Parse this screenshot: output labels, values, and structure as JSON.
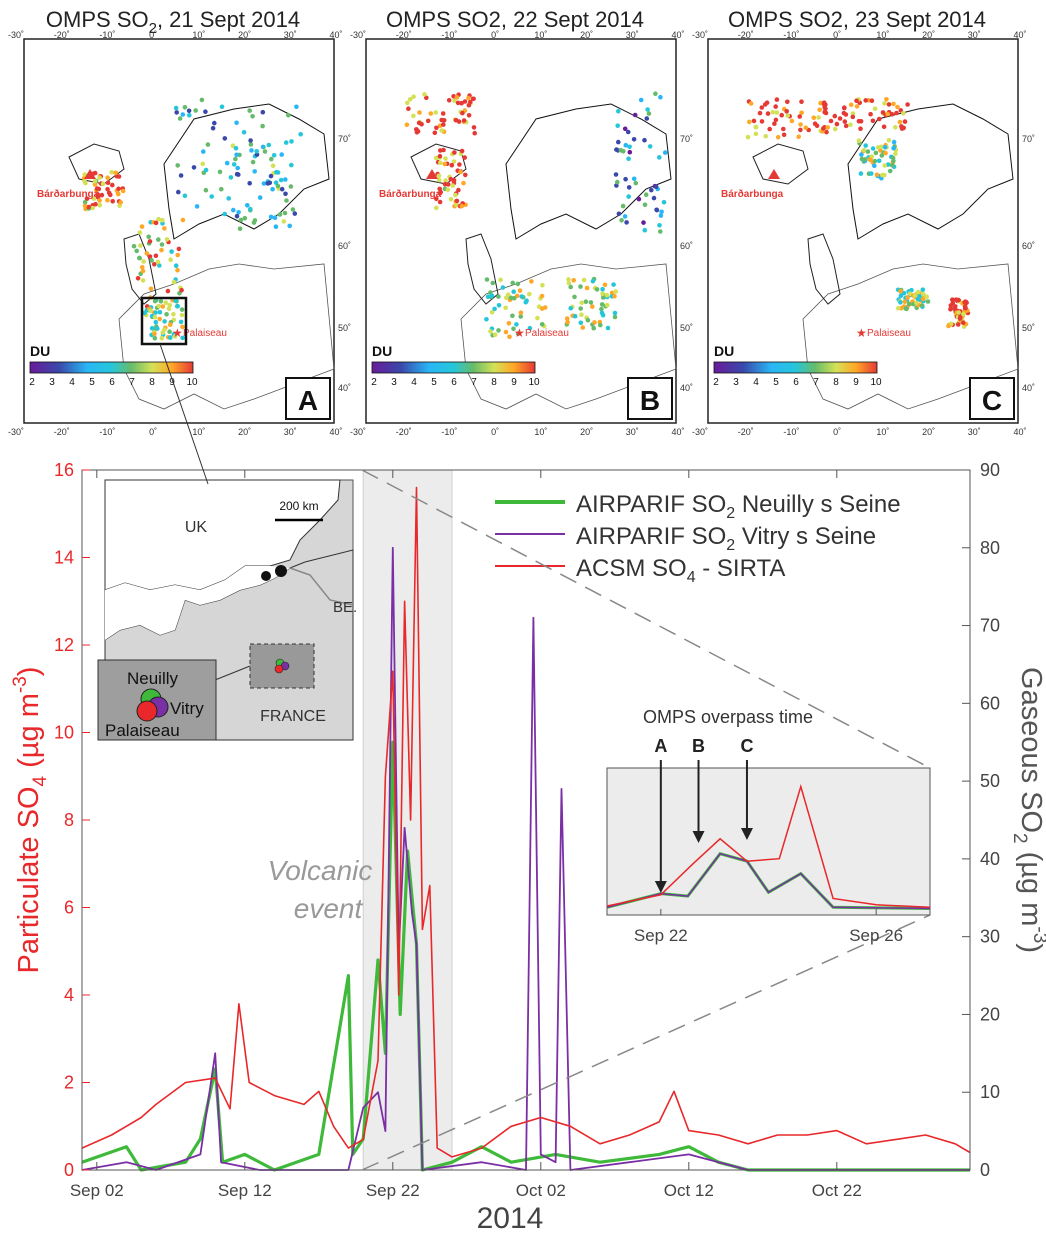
{
  "maps": [
    {
      "title_main": "OMPS SO",
      "title_sub": "2",
      "title_rest": ", 21 Sept 2014",
      "panel_letter": "A",
      "volcano_label": "Bárðarbunga",
      "site_label": "Palaiseau",
      "colorbar_unit": "DU",
      "colorbar_ticks": [
        "2",
        "3",
        "4",
        "5",
        "6",
        "7",
        "8",
        "9",
        "10"
      ],
      "lon_ticks": [
        "-30˚",
        "-20˚",
        "-10˚",
        "0˚",
        "10˚",
        "20˚",
        "30˚",
        "40˚"
      ],
      "lat_ticks": [
        "70˚",
        "60˚",
        "50˚",
        "40˚"
      ]
    },
    {
      "title_main": "OMPS SO2, 22 Sept 2014",
      "title_sub": "",
      "title_rest": "",
      "panel_letter": "B",
      "volcano_label": "Bárðarbunga",
      "site_label": "Palaiseau",
      "colorbar_unit": "DU",
      "colorbar_ticks": [
        "2",
        "3",
        "4",
        "5",
        "6",
        "7",
        "8",
        "9",
        "10"
      ],
      "lon_ticks": [
        "-30˚",
        "-20˚",
        "-10˚",
        "0˚",
        "10˚",
        "20˚",
        "30˚",
        "40˚"
      ],
      "lat_ticks": [
        "70˚",
        "60˚",
        "50˚",
        "40˚"
      ]
    },
    {
      "title_main": "OMPS SO2, 23 Sept 2014",
      "title_sub": "",
      "title_rest": "",
      "panel_letter": "C",
      "volcano_label": "Bárðarbunga",
      "site_label": "Palaiseau",
      "colorbar_unit": "DU",
      "colorbar_ticks": [
        "2",
        "3",
        "4",
        "5",
        "6",
        "7",
        "8",
        "9",
        "10"
      ],
      "lon_ticks": [
        "-30˚",
        "-20˚",
        "-10˚",
        "0˚",
        "10˚",
        "20˚",
        "30˚",
        "40˚"
      ],
      "lat_ticks": [
        "70˚",
        "60˚",
        "50˚",
        "40˚"
      ]
    }
  ],
  "colors": {
    "so4": "#e8282a",
    "neuilly": "#3fb93a",
    "vitry": "#7a2fa5",
    "shade": "#ececec",
    "axis": "#444444"
  },
  "chart_data": {
    "type": "line",
    "xlabel": "2014",
    "ylabel_left": "Particulate SO4 (µg m-3)",
    "ylabel_right": "Gaseous SO2 (µg m-3)",
    "x_range": [
      "2014-09-01",
      "2014-10-31"
    ],
    "x_ticks": [
      {
        "date": "2014-09-02",
        "label": "Sep 02"
      },
      {
        "date": "2014-09-12",
        "label": "Sep 12"
      },
      {
        "date": "2014-09-22",
        "label": "Sep 22"
      },
      {
        "date": "2014-10-02",
        "label": "Oct 02"
      },
      {
        "date": "2014-10-12",
        "label": "Oct 12"
      },
      {
        "date": "2014-10-22",
        "label": "Oct 22"
      }
    ],
    "y_left": {
      "min": 0,
      "max": 16,
      "ticks": [
        0,
        2,
        4,
        6,
        8,
        10,
        12,
        14,
        16
      ]
    },
    "y_right": {
      "min": 0,
      "max": 90,
      "ticks": [
        0,
        10,
        20,
        30,
        40,
        50,
        60,
        70,
        80,
        90
      ]
    },
    "shaded_region": {
      "start": "2014-09-20",
      "end": "2014-09-26",
      "label_line1": "Volcanic",
      "label_line2": "event"
    },
    "legend": {
      "neuilly_main": "AIRPARIF SO",
      "neuilly_sub": "2",
      "neuilly_rest": " Neuilly s Seine",
      "vitry_main": "AIRPARIF SO",
      "vitry_sub": "2",
      "vitry_rest": " Vitry s Seine",
      "so4_main": "ACSM SO",
      "so4_sub": "4",
      "so4_rest": " - SIRTA"
    },
    "series": [
      {
        "key": "so4",
        "axis": "left",
        "points": [
          [
            "2014-09-01",
            0.5
          ],
          [
            "2014-09-03",
            0.8
          ],
          [
            "2014-09-05",
            1.2
          ],
          [
            "2014-09-06",
            1.5
          ],
          [
            "2014-09-08",
            2.0
          ],
          [
            "2014-09-10",
            2.1
          ],
          [
            "2014-09-11",
            1.4
          ],
          [
            "2014-09-11.6",
            3.8
          ],
          [
            "2014-09-12.3",
            2.0
          ],
          [
            "2014-09-14",
            1.7
          ],
          [
            "2014-09-16",
            1.5
          ],
          [
            "2014-09-17",
            1.8
          ],
          [
            "2014-09-18",
            1.0
          ],
          [
            "2014-09-19",
            0.5
          ],
          [
            "2014-09-20",
            0.7
          ],
          [
            "2014-09-21",
            2.5
          ],
          [
            "2014-09-21.5",
            9.0
          ],
          [
            "2014-09-22",
            11.4
          ],
          [
            "2014-09-22.4",
            4.0
          ],
          [
            "2014-09-22.8",
            13.0
          ],
          [
            "2014-09-23.2",
            8.0
          ],
          [
            "2014-09-23.6",
            15.6
          ],
          [
            "2014-09-24",
            5.5
          ],
          [
            "2014-09-24.5",
            6.5
          ],
          [
            "2014-09-25",
            0.5
          ],
          [
            "2014-09-26",
            0.3
          ],
          [
            "2014-09-28",
            0.5
          ],
          [
            "2014-09-30",
            1.0
          ],
          [
            "2014-10-02",
            1.2
          ],
          [
            "2014-10-04",
            1.0
          ],
          [
            "2014-10-06",
            0.6
          ],
          [
            "2014-10-08",
            0.8
          ],
          [
            "2014-10-10",
            1.1
          ],
          [
            "2014-10-11",
            1.8
          ],
          [
            "2014-10-12",
            0.9
          ],
          [
            "2014-10-14",
            0.8
          ],
          [
            "2014-10-16",
            0.6
          ],
          [
            "2014-10-18",
            0.8
          ],
          [
            "2014-10-20",
            0.8
          ],
          [
            "2014-10-22",
            0.9
          ],
          [
            "2014-10-24",
            0.6
          ],
          [
            "2014-10-26",
            0.7
          ],
          [
            "2014-10-28",
            0.8
          ],
          [
            "2014-10-30",
            0.6
          ],
          [
            "2014-10-31",
            0.4
          ]
        ]
      },
      {
        "key": "neuilly",
        "axis": "right",
        "points": [
          [
            "2014-09-01",
            1
          ],
          [
            "2014-09-04",
            3
          ],
          [
            "2014-09-05",
            0
          ],
          [
            "2014-09-08",
            1
          ],
          [
            "2014-09-09",
            4
          ],
          [
            "2014-09-10",
            13
          ],
          [
            "2014-09-10.5",
            1
          ],
          [
            "2014-09-12",
            2
          ],
          [
            "2014-09-14",
            0
          ],
          [
            "2014-09-17",
            2
          ],
          [
            "2014-09-19",
            25
          ],
          [
            "2014-09-19.3",
            2
          ],
          [
            "2014-09-20",
            4
          ],
          [
            "2014-09-21",
            27
          ],
          [
            "2014-09-21.5",
            15
          ],
          [
            "2014-09-22",
            55
          ],
          [
            "2014-09-22.5",
            20
          ],
          [
            "2014-09-23",
            41
          ],
          [
            "2014-09-23.6",
            29
          ],
          [
            "2014-09-24",
            0
          ],
          [
            "2014-09-26",
            1
          ],
          [
            "2014-09-28",
            3
          ],
          [
            "2014-09-30",
            1
          ],
          [
            "2014-10-03",
            2
          ],
          [
            "2014-10-06",
            1
          ],
          [
            "2014-10-10",
            2
          ],
          [
            "2014-10-12",
            3
          ],
          [
            "2014-10-14",
            1
          ],
          [
            "2014-10-16",
            0
          ],
          [
            "2014-10-31",
            0
          ]
        ]
      },
      {
        "key": "vitry",
        "axis": "right",
        "points": [
          [
            "2014-09-01",
            0
          ],
          [
            "2014-09-04",
            1
          ],
          [
            "2014-09-06",
            0
          ],
          [
            "2014-09-09",
            2
          ],
          [
            "2014-09-10",
            15
          ],
          [
            "2014-09-10.4",
            1
          ],
          [
            "2014-09-13",
            0
          ],
          [
            "2014-09-19",
            0
          ],
          [
            "2014-09-20",
            8
          ],
          [
            "2014-09-21",
            10
          ],
          [
            "2014-09-21.5",
            5
          ],
          [
            "2014-09-22",
            80
          ],
          [
            "2014-09-22.4",
            28
          ],
          [
            "2014-09-22.8",
            44
          ],
          [
            "2014-09-23.3",
            33
          ],
          [
            "2014-09-23.6",
            29
          ],
          [
            "2014-09-24",
            0
          ],
          [
            "2014-09-28",
            1
          ],
          [
            "2014-10-01",
            0
          ],
          [
            "2014-10-01.5",
            71
          ],
          [
            "2014-10-02",
            2
          ],
          [
            "2014-10-03",
            1
          ],
          [
            "2014-10-03.4",
            49
          ],
          [
            "2014-10-04",
            0
          ],
          [
            "2014-10-08",
            1
          ],
          [
            "2014-10-12",
            2
          ],
          [
            "2014-10-16",
            0
          ],
          [
            "2014-10-31",
            0
          ]
        ]
      }
    ],
    "inset_map": {
      "scale_label": "200 km",
      "country_uk": "UK",
      "country_be": "BE.",
      "country_fr": "FRANCE",
      "site_neuilly": "Neuilly",
      "site_vitry": "Vitry",
      "site_palaiseau": "Palaiseau"
    },
    "inset_chart": {
      "title": "OMPS overpass time",
      "x_range": [
        "2014-09-21",
        "2014-09-27"
      ],
      "x_ticks": [
        {
          "date": "2014-09-22",
          "label": "Sep 22"
        },
        {
          "date": "2014-09-26",
          "label": "Sep 26"
        }
      ],
      "arrows": [
        {
          "label": "A",
          "date": "2014-09-22"
        },
        {
          "label": "B",
          "date": "2014-09-22.7"
        },
        {
          "label": "C",
          "date": "2014-09-23.6"
        }
      ],
      "so4": [
        [
          "2014-09-21",
          0.4
        ],
        [
          "2014-09-22",
          1.3
        ],
        [
          "2014-09-22.6",
          3.8
        ],
        [
          "2014-09-23.1",
          5.8
        ],
        [
          "2014-09-23.6",
          4.0
        ],
        [
          "2014-09-24.2",
          4.2
        ],
        [
          "2014-09-24.6",
          10.0
        ],
        [
          "2014-09-25.2",
          1.0
        ],
        [
          "2014-09-26",
          0.5
        ],
        [
          "2014-09-27",
          0.3
        ]
      ],
      "so2": [
        [
          "2014-09-21",
          0.3
        ],
        [
          "2014-09-22",
          1.4
        ],
        [
          "2014-09-22.5",
          1.2
        ],
        [
          "2014-09-23.1",
          4.6
        ],
        [
          "2014-09-23.6",
          4.0
        ],
        [
          "2014-09-24",
          1.5
        ],
        [
          "2014-09-24.6",
          3.0
        ],
        [
          "2014-09-25.2",
          0.3
        ],
        [
          "2014-09-27",
          0.2
        ]
      ]
    }
  }
}
